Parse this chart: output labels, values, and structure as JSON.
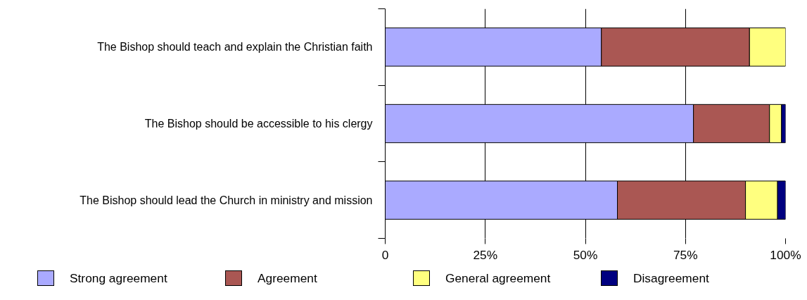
{
  "chart_data": {
    "type": "bar",
    "orientation": "horizontal",
    "stacked": true,
    "categories": [
      "The Bishop should teach and explain the Christian faith",
      "The Bishop should be accessible to his clergy",
      "The Bishop should lead the Church in ministry and mission"
    ],
    "series": [
      {
        "name": "Strong agreement",
        "color": "#aaaaff",
        "values": [
          54,
          77,
          58
        ]
      },
      {
        "name": "Agreement",
        "color": "#aa5753",
        "values": [
          37,
          19,
          32
        ]
      },
      {
        "name": "General agreement",
        "color": "#ffff7f",
        "values": [
          9,
          3,
          8
        ]
      },
      {
        "name": "Disagreement",
        "color": "#000080",
        "values": [
          0,
          1,
          2
        ]
      }
    ],
    "xlim": [
      0,
      100
    ],
    "xticks": [
      0,
      {
        "value": 25,
        "label": "25%"
      },
      {
        "value": 50,
        "label": "50%"
      },
      {
        "value": 75,
        "label": "75%"
      },
      {
        "value": 100,
        "label": "100%"
      }
    ],
    "grid": "x",
    "legend": "bottom"
  }
}
